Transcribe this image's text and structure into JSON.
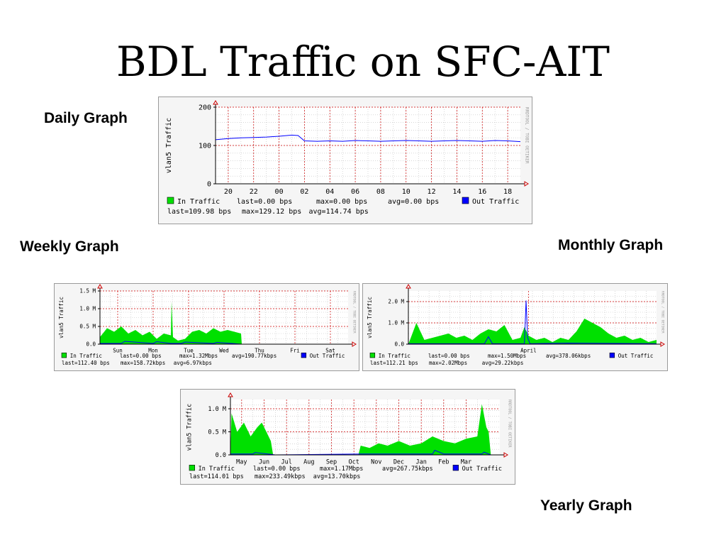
{
  "title": "BDL Traffic on SFC-AIT",
  "captions": {
    "daily": "Daily Graph",
    "weekly": "Weekly Graph",
    "monthly": "Monthly Graph",
    "yearly": "Yearly Graph"
  },
  "colors": {
    "in": "#00e000",
    "out": "#0000ff",
    "grid": "#c0c0c0",
    "vgrid": "#cc0000",
    "plot_bg": "#ffffff"
  },
  "chart_data": [
    {
      "id": "daily",
      "type": "area",
      "ylabel": "vlan5 Traffic",
      "side_label": "RRDTOOL / TOBI OETIKER",
      "ylim": [
        0,
        200
      ],
      "yticks": [
        {
          "v": 0,
          "label": "0"
        },
        {
          "v": 100,
          "label": "100"
        },
        {
          "v": 200,
          "label": "200"
        }
      ],
      "xticks": [
        "20",
        "22",
        "00",
        "02",
        "04",
        "06",
        "08",
        "10",
        "12",
        "14",
        "16",
        "18"
      ],
      "xlim": [
        0,
        24
      ],
      "xtick_pos": [
        1,
        3,
        5,
        7,
        9,
        11,
        13,
        15,
        17,
        19,
        21,
        23
      ],
      "in_series": {
        "x": [
          0,
          24
        ],
        "y": [
          0,
          0
        ]
      },
      "out_series": {
        "x": [
          0,
          1,
          2,
          3,
          4,
          5,
          6,
          6.5,
          7,
          8,
          9,
          10,
          11,
          12,
          13,
          14,
          15,
          16,
          17,
          18,
          19,
          20,
          21,
          22,
          23,
          24
        ],
        "y": [
          115,
          118,
          120,
          121,
          122,
          124,
          127,
          126,
          112,
          111,
          112,
          111,
          113,
          112,
          111,
          112,
          113,
          112,
          111,
          112,
          113,
          112,
          111,
          113,
          112,
          110
        ]
      },
      "legend": {
        "in_label": "In Traffic",
        "in_last": "last=0.00 bps",
        "in_max": "max=0.00 bps",
        "in_avg": "avg=0.00 bps",
        "out_label": "Out Traffic",
        "out_last": "last=109.98 bps",
        "out_max": "max=129.12 bps",
        "out_avg": "avg=114.74 bps"
      }
    },
    {
      "id": "weekly",
      "type": "area",
      "ylabel": "vlan5 Traffic",
      "side_label": "RRDTOOL / TOBI OETIKER",
      "ylim": [
        0,
        1.5
      ],
      "yticks": [
        {
          "v": 0,
          "label": "0.0"
        },
        {
          "v": 0.5,
          "label": "0.5 M"
        },
        {
          "v": 1.0,
          "label": "1.0 M"
        },
        {
          "v": 1.5,
          "label": "1.5 M"
        }
      ],
      "xticks": [
        "Sun",
        "Mon",
        "Tue",
        "Wed",
        "Thu",
        "Fri",
        "Sat"
      ],
      "xlim": [
        0,
        7
      ],
      "xtick_pos": [
        0.5,
        1.5,
        2.5,
        3.5,
        4.5,
        5.5,
        6.5
      ],
      "in_series": {
        "x": [
          0,
          0.2,
          0.4,
          0.6,
          0.8,
          1.0,
          1.2,
          1.4,
          1.6,
          1.8,
          2.0,
          2.02,
          2.06,
          2.2,
          2.4,
          2.6,
          2.8,
          3.0,
          3.2,
          3.4,
          3.6,
          3.98,
          4.0,
          7.0
        ],
        "y": [
          0.2,
          0.45,
          0.35,
          0.5,
          0.3,
          0.4,
          0.25,
          0.35,
          0.15,
          0.3,
          0.25,
          1.2,
          0.2,
          0.1,
          0.15,
          0.35,
          0.4,
          0.3,
          0.45,
          0.35,
          0.4,
          0.3,
          0,
          0
        ]
      },
      "out_series": {
        "x": [
          0,
          0.6,
          0.7,
          1.5,
          1.6,
          2.0,
          2.3,
          2.4,
          3.2,
          3.3,
          4.0,
          7.0
        ],
        "y": [
          0.02,
          0.02,
          0.08,
          0.02,
          0.07,
          0.02,
          0.02,
          0.06,
          0.02,
          0.05,
          0.0,
          0
        ]
      },
      "legend": {
        "in_label": "In Traffic",
        "in_last": "last=0.00 bps",
        "in_max": "max=1.32Mbps",
        "in_avg": "avg=190.77kbps",
        "out_label": "Out Traffic",
        "out_last": "last=112.40 bps",
        "out_max": "max=158.72kbps",
        "out_avg": "avg=6.97kbps"
      }
    },
    {
      "id": "monthly",
      "type": "area",
      "ylabel": "vlan5 Traffic",
      "side_label": "RRDTOOL / TOBI OETIKER",
      "ylim": [
        0,
        2.5
      ],
      "yticks": [
        {
          "v": 0,
          "label": "0.0"
        },
        {
          "v": 1.0,
          "label": "1.0 M"
        },
        {
          "v": 2.0,
          "label": "2.0 M"
        }
      ],
      "xticks": [
        "April"
      ],
      "xlim": [
        0,
        31
      ],
      "xtick_pos": [
        15
      ],
      "in_series": {
        "x": [
          0,
          1,
          1.5,
          2,
          3,
          4,
          5,
          6,
          7,
          8,
          9,
          10,
          11,
          12,
          13,
          14,
          14.5,
          15,
          16,
          17,
          18,
          19,
          20,
          21,
          22,
          23,
          24,
          25,
          26,
          27,
          28,
          29,
          30,
          31
        ],
        "y": [
          0,
          1.0,
          0.6,
          0.2,
          0.3,
          0.4,
          0.5,
          0.3,
          0.4,
          0.2,
          0.5,
          0.7,
          0.6,
          0.9,
          0.2,
          0.3,
          0.8,
          0.4,
          0.2,
          0.3,
          0.1,
          0.3,
          0.2,
          0.6,
          1.2,
          1.0,
          0.8,
          0.5,
          0.3,
          0.4,
          0.2,
          0.3,
          0.1,
          0.2
        ]
      },
      "out_series": {
        "x": [
          0,
          9.5,
          10,
          10.5,
          14.5,
          14.7,
          14.9,
          15.2,
          20,
          31
        ],
        "y": [
          0.02,
          0.02,
          0.35,
          0.02,
          0.02,
          2.05,
          0.3,
          0.02,
          0.05,
          0.02
        ]
      },
      "legend": {
        "in_label": "In Traffic",
        "in_last": "last=0.00 bps",
        "in_max": "max=1.50Mbps",
        "in_avg": "avg=378.06kbps",
        "out_label": "Out Traffic",
        "out_last": "last=112.21 bps",
        "out_max": "max=2.02Mbps",
        "out_avg": "avg=29.22kbps"
      }
    },
    {
      "id": "yearly",
      "type": "area",
      "ylabel": "vlan5 Traffic",
      "side_label": "RRDTOOL / TOBI OETIKER",
      "ylim": [
        0,
        1.2
      ],
      "yticks": [
        {
          "v": 0,
          "label": "0.0"
        },
        {
          "v": 0.5,
          "label": "0.5 M"
        },
        {
          "v": 1.0,
          "label": "1.0 M"
        }
      ],
      "xticks": [
        "May",
        "Jun",
        "Jul",
        "Aug",
        "Sep",
        "Oct",
        "Nov",
        "Dec",
        "Jan",
        "Feb",
        "Mar"
      ],
      "xlim": [
        0,
        12
      ],
      "xtick_pos": [
        0.5,
        1.5,
        2.5,
        3.5,
        4.5,
        5.5,
        6.5,
        7.5,
        8.5,
        9.5,
        10.5
      ],
      "in_series": {
        "x": [
          0,
          0.05,
          0.3,
          0.6,
          0.9,
          1.2,
          1.4,
          1.6,
          1.8,
          1.9,
          5.7,
          5.8,
          6.2,
          6.6,
          7.0,
          7.5,
          8.0,
          8.5,
          9.0,
          9.5,
          10.0,
          10.5,
          11.0,
          11.2,
          11.4,
          11.5,
          11.6,
          12
        ],
        "y": [
          0,
          0.9,
          0.5,
          0.7,
          0.4,
          0.6,
          0.7,
          0.5,
          0.3,
          0,
          0,
          0.2,
          0.15,
          0.25,
          0.2,
          0.3,
          0.2,
          0.25,
          0.4,
          0.3,
          0.25,
          0.35,
          0.4,
          1.1,
          0.6,
          0.5,
          0,
          0
        ]
      },
      "out_series": {
        "x": [
          0,
          1.0,
          1.1,
          2.0,
          5.8,
          9.0,
          9.1,
          9.5,
          11.2,
          11.3,
          11.6,
          12
        ],
        "y": [
          0.02,
          0.02,
          0.05,
          0,
          0.02,
          0.02,
          0.1,
          0.02,
          0.02,
          0.06,
          0,
          0
        ]
      },
      "legend": {
        "in_label": "In Traffic",
        "in_last": "last=0.00 bps",
        "in_max": "max=1.17Mbps",
        "in_avg": "avg=267.75kbps",
        "out_label": "Out Traffic",
        "out_last": "last=114.01 bps",
        "out_max": "max=233.49kbps",
        "out_avg": "avg=13.70kbps"
      }
    }
  ]
}
